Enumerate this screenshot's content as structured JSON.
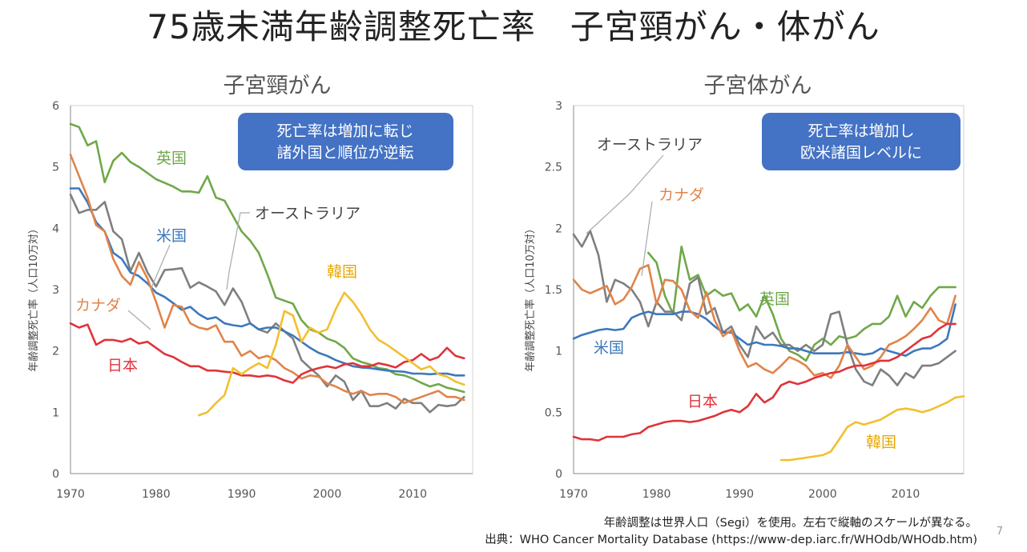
{
  "slide": {
    "title": "75歳未満年齢調整死亡率　子宮頸がん・体がん",
    "note": "年齢調整は世界人口（Segi）を使用。左右で縦軸のスケールが異なる。",
    "source": "出典：WHO Cancer Mortality Database (https://www-dep.iarc.fr/WHOdb/WHOdb.htm)",
    "page_number": "7"
  },
  "chart_data": [
    {
      "type": "line",
      "title": "子宮頸がん",
      "ylabel": "年齢調整死亡率（人口10万対）",
      "xlim": [
        1970,
        2017
      ],
      "ylim": [
        0,
        6
      ],
      "xticks": [
        1970,
        1980,
        1990,
        2000,
        2010
      ],
      "yticks": [
        0,
        1,
        2,
        3,
        4,
        5,
        6
      ],
      "grid": false,
      "callout": "死亡率は増加に転じ\n諸外国と順位が逆転",
      "series": [
        {
          "name": "英国",
          "color": "#70a84a",
          "x_start": 1970,
          "values": [
            5.7,
            5.65,
            5.35,
            5.42,
            4.75,
            5.1,
            5.23,
            5.08,
            5.0,
            4.9,
            4.8,
            4.74,
            4.68,
            4.6,
            4.6,
            4.58,
            4.85,
            4.5,
            4.45,
            4.2,
            3.95,
            3.8,
            3.6,
            3.25,
            2.87,
            2.82,
            2.77,
            2.5,
            2.35,
            2.3,
            2.2,
            2.15,
            2.05,
            1.88,
            1.82,
            1.78,
            1.72,
            1.7,
            1.62,
            1.6,
            1.55,
            1.48,
            1.42,
            1.46,
            1.4,
            1.37,
            1.33
          ]
        },
        {
          "name": "オーストラリア",
          "color": "#7f7f7f",
          "x_start": 1970,
          "values": [
            4.55,
            4.25,
            4.3,
            4.3,
            4.43,
            3.95,
            3.82,
            3.3,
            3.6,
            3.28,
            3.05,
            3.32,
            3.33,
            3.35,
            3.03,
            3.12,
            3.05,
            2.97,
            2.75,
            3.02,
            2.8,
            2.45,
            2.35,
            2.3,
            2.45,
            2.32,
            2.2,
            1.85,
            1.72,
            1.6,
            1.42,
            1.6,
            1.5,
            1.2,
            1.35,
            1.1,
            1.1,
            1.15,
            1.06,
            1.22,
            1.15,
            1.15,
            1.0,
            1.12,
            1.1,
            1.12,
            1.25
          ]
        },
        {
          "name": "米国",
          "color": "#3d78bc",
          "x_start": 1970,
          "values": [
            4.65,
            4.65,
            4.42,
            4.1,
            3.95,
            3.6,
            3.5,
            3.28,
            3.22,
            3.1,
            2.95,
            2.88,
            2.78,
            2.67,
            2.72,
            2.6,
            2.52,
            2.55,
            2.45,
            2.42,
            2.4,
            2.45,
            2.35,
            2.38,
            2.38,
            2.32,
            2.25,
            2.15,
            2.05,
            1.97,
            1.92,
            1.85,
            1.8,
            1.75,
            1.73,
            1.72,
            1.7,
            1.68,
            1.67,
            1.66,
            1.63,
            1.63,
            1.62,
            1.63,
            1.63,
            1.6,
            1.6
          ]
        },
        {
          "name": "カナダ",
          "color": "#e0844a",
          "x_start": 1970,
          "values": [
            5.2,
            4.85,
            4.5,
            4.05,
            3.95,
            3.5,
            3.22,
            3.08,
            3.45,
            3.18,
            2.8,
            2.38,
            2.75,
            2.72,
            2.45,
            2.38,
            2.35,
            2.42,
            2.15,
            2.15,
            1.92,
            2.0,
            1.88,
            1.92,
            1.85,
            1.72,
            1.65,
            1.55,
            1.6,
            1.58,
            1.47,
            1.42,
            1.35,
            1.3,
            1.35,
            1.28,
            1.3,
            1.3,
            1.25,
            1.15,
            1.2,
            1.25,
            1.3,
            1.35,
            1.25,
            1.25,
            1.2
          ]
        },
        {
          "name": "日本",
          "color": "#e0333a",
          "x_start": 1970,
          "values": [
            2.45,
            2.38,
            2.43,
            2.1,
            2.18,
            2.18,
            2.15,
            2.2,
            2.12,
            2.15,
            2.05,
            1.95,
            1.9,
            1.82,
            1.75,
            1.75,
            1.68,
            1.68,
            1.66,
            1.65,
            1.6,
            1.6,
            1.58,
            1.6,
            1.58,
            1.52,
            1.48,
            1.62,
            1.68,
            1.72,
            1.75,
            1.72,
            1.78,
            1.8,
            1.75,
            1.75,
            1.8,
            1.77,
            1.73,
            1.82,
            1.85,
            1.95,
            1.85,
            1.9,
            2.05,
            1.92,
            1.88
          ]
        },
        {
          "name": "韓国",
          "color": "#f2bf2f",
          "x_start": 1985,
          "values": [
            0.95,
            1.0,
            1.15,
            1.28,
            1.72,
            1.62,
            1.72,
            1.8,
            1.72,
            2.1,
            2.65,
            2.58,
            2.15,
            2.38,
            2.3,
            2.35,
            2.68,
            2.95,
            2.8,
            2.6,
            2.35,
            2.18,
            2.1,
            2.0,
            1.9,
            1.8,
            1.7,
            1.75,
            1.62,
            1.58,
            1.5,
            1.45
          ]
        }
      ],
      "labels": {
        "uk": "英国",
        "australia": "オーストラリア",
        "us": "米国",
        "canada": "カナダ",
        "japan": "日本",
        "korea": "韓国"
      }
    },
    {
      "type": "line",
      "title": "子宮体がん",
      "ylabel": "年齢調整死亡率（人口10万対）",
      "xlim": [
        1970,
        2017
      ],
      "ylim": [
        0,
        3
      ],
      "xticks": [
        1970,
        1980,
        1990,
        2000,
        2010
      ],
      "yticks": [
        0,
        0.5,
        1,
        1.5,
        2,
        2.5,
        3
      ],
      "ytick_labels": [
        "0",
        "0.5",
        "1",
        "1.5",
        "2",
        "2.5",
        "3"
      ],
      "grid": false,
      "callout": "死亡率は増加し\n欧米諸国レベルに",
      "series": [
        {
          "name": "英国",
          "color": "#70a84a",
          "x_start": 1979,
          "values": [
            1.8,
            1.72,
            1.45,
            1.3,
            1.85,
            1.58,
            1.62,
            1.45,
            1.5,
            1.45,
            1.47,
            1.33,
            1.38,
            1.28,
            1.45,
            1.3,
            1.1,
            1.0,
            0.97,
            0.92,
            1.05,
            1.1,
            1.05,
            1.12,
            1.1,
            1.12,
            1.18,
            1.22,
            1.22,
            1.28,
            1.45,
            1.28,
            1.4,
            1.35,
            1.45,
            1.52,
            1.52,
            1.52
          ]
        },
        {
          "name": "オーストラリア",
          "color": "#7f7f7f",
          "x_start": 1970,
          "values": [
            1.95,
            1.85,
            1.98,
            1.78,
            1.4,
            1.58,
            1.55,
            1.5,
            1.4,
            1.2,
            1.4,
            1.32,
            1.32,
            1.25,
            1.55,
            1.6,
            1.3,
            1.35,
            1.15,
            1.2,
            1.05,
            0.95,
            1.2,
            1.1,
            1.15,
            1.05,
            1.05,
            1.0,
            1.05,
            1.0,
            1.05,
            1.3,
            1.32,
            1.05,
            0.85,
            0.75,
            0.72,
            0.85,
            0.8,
            0.72,
            0.82,
            0.78,
            0.88,
            0.88,
            0.9,
            0.95,
            1.0
          ]
        },
        {
          "name": "米国",
          "color": "#3d78bc",
          "x_start": 1970,
          "values": [
            1.1,
            1.13,
            1.15,
            1.17,
            1.18,
            1.17,
            1.18,
            1.27,
            1.3,
            1.32,
            1.3,
            1.3,
            1.3,
            1.32,
            1.32,
            1.3,
            1.26,
            1.2,
            1.15,
            1.15,
            1.1,
            1.05,
            1.07,
            1.05,
            1.05,
            1.04,
            1.02,
            1.02,
            1.0,
            0.98,
            0.98,
            0.98,
            0.98,
            0.99,
            0.98,
            0.97,
            0.98,
            1.02,
            1.0,
            0.98,
            0.96,
            1.0,
            1.02,
            1.02,
            1.05,
            1.1,
            1.38
          ]
        },
        {
          "name": "カナダ",
          "color": "#e0844a",
          "x_start": 1970,
          "values": [
            1.58,
            1.5,
            1.47,
            1.5,
            1.53,
            1.38,
            1.42,
            1.52,
            1.67,
            1.7,
            1.38,
            1.58,
            1.57,
            1.5,
            1.33,
            1.27,
            1.48,
            1.25,
            1.12,
            1.17,
            1.0,
            0.87,
            0.9,
            0.85,
            0.82,
            0.88,
            0.95,
            0.92,
            0.88,
            0.8,
            0.82,
            0.78,
            0.88,
            1.05,
            0.95,
            0.85,
            0.88,
            0.95,
            1.05,
            1.08,
            1.12,
            1.18,
            1.25,
            1.35,
            1.25,
            1.22,
            1.45
          ]
        },
        {
          "name": "日本",
          "color": "#e0333a",
          "x_start": 1970,
          "values": [
            0.3,
            0.28,
            0.28,
            0.27,
            0.3,
            0.3,
            0.3,
            0.32,
            0.33,
            0.38,
            0.4,
            0.42,
            0.43,
            0.43,
            0.42,
            0.43,
            0.45,
            0.47,
            0.5,
            0.52,
            0.5,
            0.55,
            0.65,
            0.58,
            0.62,
            0.72,
            0.75,
            0.73,
            0.75,
            0.78,
            0.8,
            0.82,
            0.83,
            0.86,
            0.88,
            0.88,
            0.9,
            0.92,
            0.92,
            0.95,
            1.0,
            1.05,
            1.1,
            1.12,
            1.18,
            1.22,
            1.22
          ]
        },
        {
          "name": "韓国",
          "color": "#f2bf2f",
          "x_start": 1995,
          "values": [
            0.11,
            0.11,
            0.12,
            0.13,
            0.14,
            0.15,
            0.18,
            0.28,
            0.38,
            0.42,
            0.4,
            0.42,
            0.44,
            0.48,
            0.52,
            0.53,
            0.52,
            0.5,
            0.52,
            0.55,
            0.58,
            0.62,
            0.63
          ]
        }
      ],
      "labels": {
        "australia": "オーストラリア",
        "canada": "カナダ",
        "uk": "英国",
        "us": "米国",
        "japan": "日本",
        "korea": "韓国"
      }
    }
  ]
}
